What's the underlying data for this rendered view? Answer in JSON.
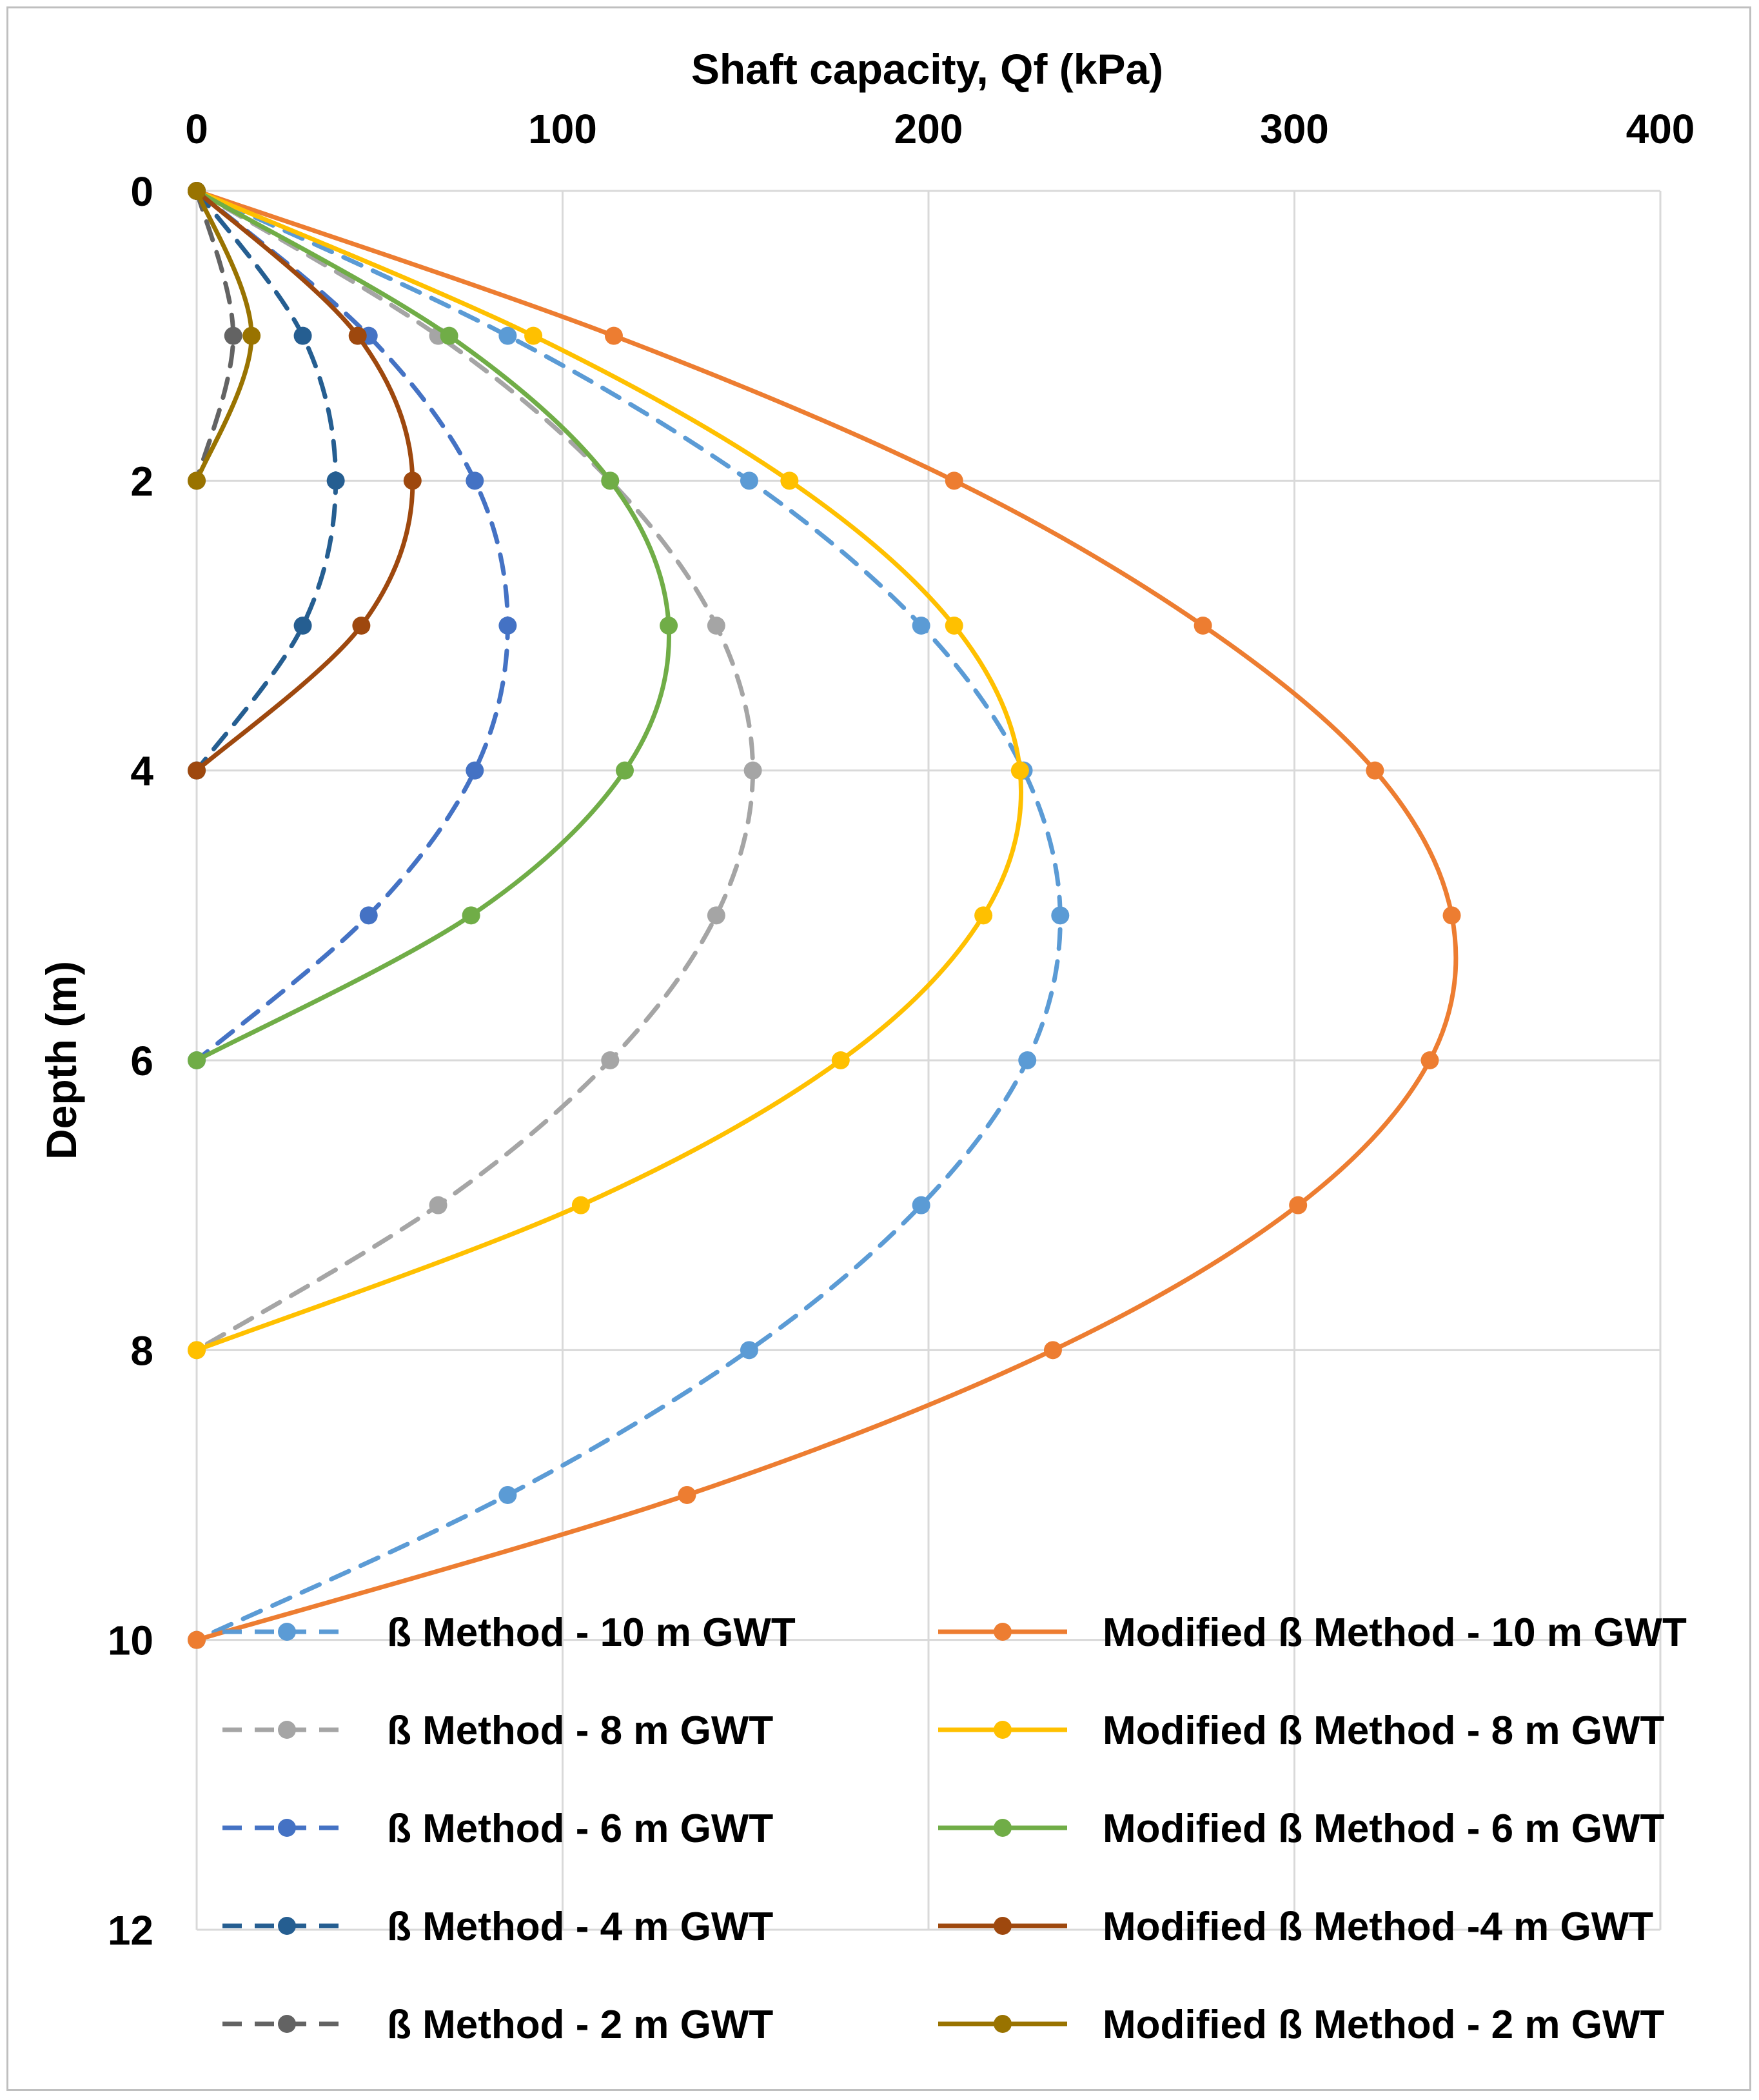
{
  "chart_data": {
    "type": "line",
    "title": "",
    "xlabel": "Shaft capacity, Qf (kPa)",
    "ylabel": "Depth (m)",
    "xlim": [
      0,
      400
    ],
    "ylim": [
      0,
      12
    ],
    "x_axis_position": "top",
    "y_axis_inverted": true,
    "x_ticks": [
      0,
      100,
      200,
      300,
      400
    ],
    "y_ticks": [
      0,
      2,
      4,
      6,
      8,
      10,
      12
    ],
    "x_tick_labels": [
      "0",
      "100",
      "200",
      "300",
      "400"
    ],
    "y_tick_labels": [
      "0",
      "2",
      "4",
      "6",
      "8",
      "10",
      "12"
    ],
    "grid": true,
    "legend_position": "bottom",
    "series": [
      {
        "name": "ß  Method - 10 m GWT",
        "color": "#5b9bd5",
        "dashed": true,
        "x": [
          0,
          85,
          151,
          198,
          226,
          236,
          227,
          198,
          151,
          85,
          0
        ],
        "y": [
          0,
          1,
          2,
          3,
          4,
          5,
          6,
          7,
          8,
          9,
          10
        ]
      },
      {
        "name": "Modified ß  Method - 10 m GWT",
        "color": "#ed7d31",
        "dashed": false,
        "x": [
          0,
          114,
          207,
          275,
          322,
          343,
          337,
          301,
          234,
          134,
          0
        ],
        "y": [
          0,
          1,
          2,
          3,
          4,
          5,
          6,
          7,
          8,
          9,
          10
        ]
      },
      {
        "name": "ß  Method - 8 m GWT",
        "color": "#a5a5a5",
        "dashed": true,
        "x": [
          0,
          66,
          113,
          142,
          152,
          142,
          113,
          66,
          0
        ],
        "y": [
          0,
          1,
          2,
          3,
          4,
          5,
          6,
          7,
          8
        ]
      },
      {
        "name": "Modified ß  Method - 8 m GWT",
        "color": "#ffc000",
        "dashed": false,
        "x": [
          0,
          92,
          162,
          207,
          225,
          215,
          176,
          105,
          0
        ],
        "y": [
          0,
          1,
          2,
          3,
          4,
          5,
          6,
          7,
          8
        ]
      },
      {
        "name": "ß  Method - 6 m GWT",
        "color": "#4472c4",
        "dashed": true,
        "x": [
          0,
          47,
          76,
          85,
          76,
          47,
          0
        ],
        "y": [
          0,
          1,
          2,
          3,
          4,
          5,
          6
        ]
      },
      {
        "name": "Modified ß  Method - 6 m GWT",
        "color": "#70ad47",
        "dashed": false,
        "x": [
          0,
          69,
          113,
          129,
          117,
          75,
          0
        ],
        "y": [
          0,
          1,
          2,
          3,
          4,
          5,
          6
        ]
      },
      {
        "name": "ß  Method - 4 m GWT",
        "color": "#255e91",
        "dashed": true,
        "x": [
          0,
          29,
          38,
          29,
          0
        ],
        "y": [
          0,
          1,
          2,
          3,
          4
        ]
      },
      {
        "name": "Modified ß  Method -4 m GWT",
        "color": "#9e480e",
        "dashed": false,
        "x": [
          0,
          44,
          59,
          45,
          0
        ],
        "y": [
          0,
          1,
          2,
          3,
          4
        ]
      },
      {
        "name": "ß  Method - 2 m GWT",
        "color": "#636363",
        "dashed": true,
        "x": [
          0,
          10,
          0
        ],
        "y": [
          0,
          1,
          2
        ]
      },
      {
        "name": "Modified ß  Method - 2 m GWT",
        "color": "#997300",
        "dashed": false,
        "x": [
          0,
          15,
          0
        ],
        "y": [
          0,
          1,
          2
        ]
      }
    ]
  }
}
